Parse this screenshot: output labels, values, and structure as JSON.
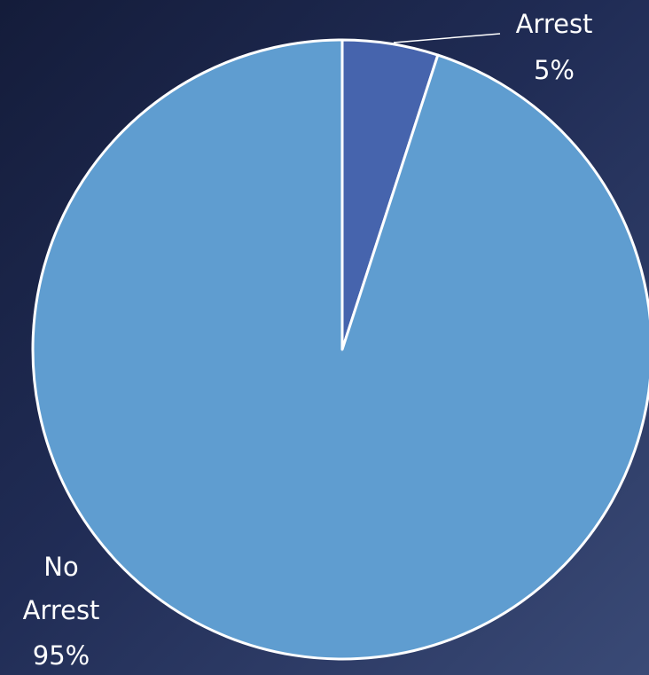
{
  "chart_data": {
    "type": "pie",
    "title": "",
    "slices": [
      {
        "label": "Arrest",
        "value": 5,
        "percent_label": "5%",
        "color": "#4664ad"
      },
      {
        "label": "No Arrest",
        "value": 95,
        "percent_label": "95%",
        "color": "#5f9dd0"
      }
    ],
    "start_angle_deg": 0,
    "direction": "clockwise",
    "slice_border_color": "#ffffff",
    "data_labels": "outside",
    "legend": "none"
  },
  "background": {
    "gradient_from": "#141c3a",
    "gradient_to": "#3a4a76"
  }
}
